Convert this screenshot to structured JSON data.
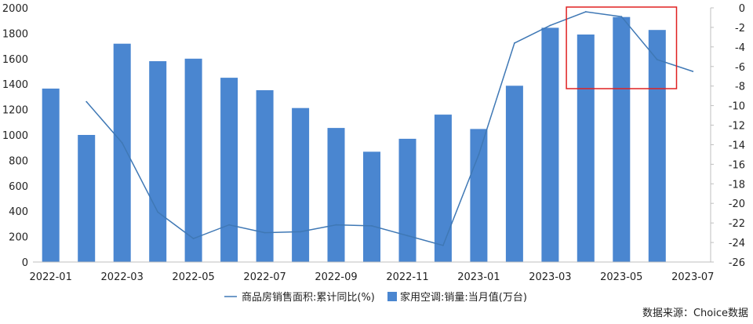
{
  "chart_data": {
    "type": "bar",
    "categories": [
      "2022-01",
      "2022-02",
      "2022-03",
      "2022-04",
      "2022-05",
      "2022-06",
      "2022-07",
      "2022-08",
      "2022-09",
      "2022-10",
      "2022-11",
      "2022-12",
      "2023-01",
      "2023-02",
      "2023-03",
      "2023-04",
      "2023-05",
      "2023-06",
      "2023-07"
    ],
    "x_tick_labels": [
      "2022-01",
      "2022-03",
      "2022-05",
      "2022-07",
      "2022-09",
      "2022-11",
      "2023-01",
      "2023-03",
      "2023-05",
      "2023-07"
    ],
    "series": [
      {
        "name": "家用空调:销量:当月值(万台)",
        "type": "bar",
        "axis": "left",
        "color": "#4a86d0",
        "values": [
          1365,
          1000,
          1718,
          1580,
          1600,
          1450,
          1352,
          1212,
          1055,
          868,
          970,
          1160,
          1047,
          1387,
          1843,
          1790,
          1928,
          1826,
          null
        ]
      },
      {
        "name": "商品房销售面积:累计同比(%)",
        "type": "line",
        "axis": "right",
        "color": "#3f78b5",
        "values": [
          null,
          -9.6,
          -13.8,
          -20.9,
          -23.6,
          -22.2,
          -23.0,
          -22.9,
          -22.2,
          -22.3,
          -23.3,
          -24.3,
          -15.0,
          -3.6,
          -1.8,
          -0.4,
          -0.9,
          -5.3,
          -6.5
        ]
      }
    ],
    "y_left": {
      "min": 0,
      "max": 2000,
      "ticks": [
        "2000",
        "1800",
        "1600",
        "1400",
        "1200",
        "1000",
        "800",
        "600",
        "400",
        "200",
        "0"
      ]
    },
    "y_right": {
      "min": -26,
      "max": 0,
      "ticks": [
        "0",
        "-2",
        "-4",
        "-6",
        "-8",
        "-10",
        "-12",
        "-14",
        "-16",
        "-18",
        "-20",
        "-22",
        "-24",
        "-26"
      ]
    },
    "legend_position": "bottom",
    "highlight_box_color": "#e02020",
    "highlight_range": [
      "2023-04",
      "2023-06"
    ]
  },
  "source_text": "数据来源：Choice数据"
}
